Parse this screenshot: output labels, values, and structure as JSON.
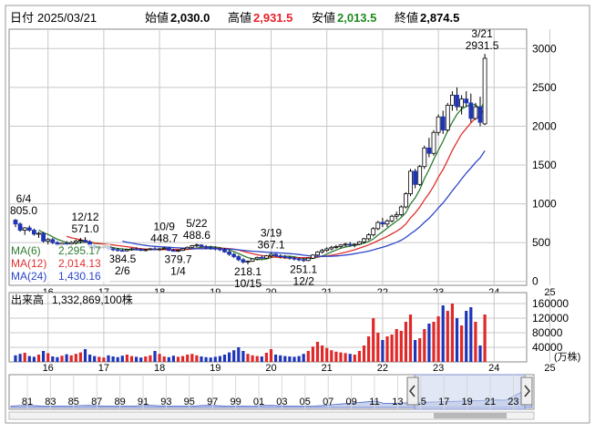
{
  "header": {
    "date_label": "日付",
    "date_value": "2025/03/21",
    "open_label": "始値",
    "open_value": "2,030.0",
    "high_label": "高値",
    "high_value": "2,931.5",
    "low_label": "安値",
    "low_value": "2,013.5",
    "close_label": "終値",
    "close_value": "2,874.5"
  },
  "colors": {
    "up": "#000000",
    "down": "#1f35b8",
    "high_text": "#e8202a",
    "low_text": "#1e8a1e",
    "ma6": "#2e7d32",
    "ma12": "#e23030",
    "ma24": "#2c46c8",
    "vol_up": "#e02828",
    "vol_down": "#1f35b8",
    "grid": "#c8c8c8",
    "navigator_fill": "#c9d3ec"
  },
  "legend": {
    "ma6_label": "MA(6)",
    "ma6_value": "2,295.17",
    "ma12_label": "MA(12)",
    "ma12_value": "2,014.13",
    "ma24_label": "MA(24)",
    "ma24_value": "1,430.16"
  },
  "volume": {
    "label": "出来高",
    "value": "1,332,869,100株",
    "unit": "(万株)",
    "ticks": [
      "160000",
      "120000",
      "80000",
      "40000"
    ]
  },
  "annotations": [
    {
      "date": "6/4",
      "value": "805.0"
    },
    {
      "date": "12/12",
      "value": "571.0"
    },
    {
      "date": "2/6",
      "value": "384.5"
    },
    {
      "date": "10/9",
      "value": "448.7"
    },
    {
      "date": "1/4",
      "value": "379.7"
    },
    {
      "date": "5/22",
      "value": "488.6"
    },
    {
      "date": "10/15",
      "value": "218.1"
    },
    {
      "date": "3/19",
      "value": "367.1"
    },
    {
      "date": "12/2",
      "value": "251.1"
    },
    {
      "date": "3/21",
      "value": "2931.5"
    }
  ],
  "navigator": {
    "labels": [
      "81",
      "83",
      "85",
      "87",
      "89",
      "91",
      "93",
      "95",
      "97",
      "99",
      "01",
      "03",
      "05",
      "07",
      "09",
      "11",
      "13",
      "15",
      "17",
      "19",
      "21",
      "23"
    ],
    "left_handle_icon": "chevron-left-icon",
    "right_handle_icon": "chevron-right-icon"
  },
  "chart_data": {
    "type": "candlestick",
    "period": "monthly",
    "x_tick_labels": [
      "16",
      "17",
      "18",
      "19",
      "20",
      "21",
      "22",
      "23",
      "24",
      "25"
    ],
    "y_tick_labels": [
      "3000",
      "2500",
      "2000",
      "1500",
      "1000",
      "500",
      "0"
    ],
    "ylim": [
      -50,
      3250
    ],
    "grid": true,
    "series_ma": [
      {
        "name": "MA(6)",
        "last": 2295.17
      },
      {
        "name": "MA(12)",
        "last": 2014.13
      },
      {
        "name": "MA(24)",
        "last": 1430.16
      }
    ],
    "start_month": "2015-06",
    "ohlc": [
      [
        790,
        805,
        700,
        740
      ],
      [
        740,
        760,
        640,
        660
      ],
      [
        660,
        700,
        600,
        690
      ],
      [
        690,
        720,
        640,
        660
      ],
      [
        660,
        680,
        590,
        610
      ],
      [
        610,
        640,
        560,
        620
      ],
      [
        620,
        640,
        500,
        520
      ],
      [
        520,
        560,
        470,
        540
      ],
      [
        540,
        560,
        480,
        500
      ],
      [
        500,
        520,
        450,
        470
      ],
      [
        470,
        500,
        430,
        490
      ],
      [
        490,
        520,
        460,
        480
      ],
      [
        480,
        520,
        440,
        500
      ],
      [
        500,
        540,
        470,
        520
      ],
      [
        520,
        560,
        490,
        530
      ],
      [
        530,
        571,
        500,
        510
      ],
      [
        510,
        530,
        440,
        460
      ],
      [
        460,
        480,
        400,
        430
      ],
      [
        430,
        460,
        400,
        440
      ],
      [
        440,
        470,
        410,
        450
      ],
      [
        450,
        470,
        400,
        420
      ],
      [
        420,
        440,
        390,
        410
      ],
      [
        410,
        430,
        385,
        400
      ],
      [
        400,
        420,
        384.5,
        395
      ],
      [
        395,
        420,
        385,
        410
      ],
      [
        410,
        430,
        395,
        420
      ],
      [
        420,
        440,
        400,
        415
      ],
      [
        415,
        430,
        390,
        400
      ],
      [
        400,
        420,
        385,
        410
      ],
      [
        410,
        430,
        400,
        420
      ],
      [
        420,
        440,
        400,
        410
      ],
      [
        410,
        430,
        395,
        420
      ],
      [
        420,
        448.7,
        410,
        430
      ],
      [
        430,
        440,
        390,
        400
      ],
      [
        400,
        420,
        385,
        395
      ],
      [
        395,
        410,
        379.7,
        400
      ],
      [
        400,
        430,
        390,
        420
      ],
      [
        420,
        450,
        410,
        440
      ],
      [
        440,
        470,
        430,
        460
      ],
      [
        460,
        488.6,
        440,
        470
      ],
      [
        470,
        480,
        440,
        450
      ],
      [
        450,
        470,
        420,
        440
      ],
      [
        440,
        460,
        410,
        430
      ],
      [
        430,
        450,
        400,
        420
      ],
      [
        420,
        440,
        390,
        410
      ],
      [
        410,
        430,
        370,
        380
      ],
      [
        380,
        400,
        330,
        350
      ],
      [
        350,
        370,
        300,
        320
      ],
      [
        320,
        340,
        260,
        280
      ],
      [
        280,
        300,
        230,
        250
      ],
      [
        250,
        270,
        218.1,
        260
      ],
      [
        260,
        300,
        250,
        290
      ],
      [
        290,
        320,
        270,
        310
      ],
      [
        310,
        330,
        290,
        300
      ],
      [
        300,
        340,
        290,
        330
      ],
      [
        330,
        367.1,
        310,
        350
      ],
      [
        350,
        360,
        320,
        330
      ],
      [
        330,
        350,
        300,
        320
      ],
      [
        320,
        340,
        290,
        310
      ],
      [
        310,
        330,
        280,
        300
      ],
      [
        300,
        320,
        270,
        290
      ],
      [
        290,
        310,
        260,
        280
      ],
      [
        280,
        300,
        251.1,
        270
      ],
      [
        270,
        310,
        260,
        300
      ],
      [
        300,
        350,
        290,
        340
      ],
      [
        340,
        390,
        330,
        380
      ],
      [
        380,
        420,
        360,
        400
      ],
      [
        400,
        440,
        380,
        420
      ],
      [
        420,
        460,
        400,
        440
      ],
      [
        440,
        470,
        420,
        450
      ],
      [
        450,
        480,
        430,
        470
      ],
      [
        470,
        500,
        450,
        480
      ],
      [
        480,
        510,
        450,
        470
      ],
      [
        470,
        490,
        440,
        480
      ],
      [
        480,
        520,
        470,
        510
      ],
      [
        510,
        560,
        490,
        550
      ],
      [
        550,
        620,
        530,
        600
      ],
      [
        600,
        700,
        580,
        680
      ],
      [
        680,
        780,
        660,
        760
      ],
      [
        760,
        820,
        700,
        740
      ],
      [
        740,
        800,
        700,
        780
      ],
      [
        780,
        860,
        760,
        840
      ],
      [
        840,
        900,
        800,
        860
      ],
      [
        860,
        980,
        840,
        960
      ],
      [
        960,
        1150,
        940,
        1130
      ],
      [
        1130,
        1450,
        1100,
        1420
      ],
      [
        1420,
        1450,
        1200,
        1250
      ],
      [
        1250,
        1500,
        1230,
        1480
      ],
      [
        1480,
        1750,
        1450,
        1720
      ],
      [
        1720,
        1850,
        1600,
        1650
      ],
      [
        1650,
        1950,
        1620,
        1920
      ],
      [
        1920,
        2150,
        1880,
        2120
      ],
      [
        2120,
        2200,
        1900,
        1950
      ],
      [
        1950,
        2300,
        1930,
        2270
      ],
      [
        2270,
        2450,
        2200,
        2400
      ],
      [
        2400,
        2500,
        2200,
        2250
      ],
      [
        2250,
        2400,
        2150,
        2350
      ],
      [
        2350,
        2450,
        2250,
        2300
      ],
      [
        2300,
        2420,
        2050,
        2100
      ],
      [
        2100,
        2300,
        2080,
        2250
      ],
      [
        2250,
        2380,
        2000,
        2050
      ],
      [
        2030,
        2931.5,
        2013.5,
        2874.5
      ]
    ],
    "volume": [
      18000,
      22000,
      25000,
      16000,
      14000,
      20000,
      30000,
      24000,
      15000,
      13000,
      17000,
      21000,
      18000,
      22000,
      26000,
      35000,
      20000,
      16000,
      14000,
      12000,
      18000,
      15000,
      13000,
      17000,
      20000,
      16000,
      14000,
      12000,
      15000,
      18000,
      30000,
      22000,
      15000,
      13000,
      17000,
      14000,
      16000,
      20000,
      22000,
      18000,
      15000,
      13000,
      12000,
      14000,
      16000,
      20000,
      26000,
      32000,
      40000,
      30000,
      22000,
      18000,
      16000,
      15000,
      25000,
      35000,
      20000,
      18000,
      16000,
      15000,
      14000,
      16000,
      22000,
      30000,
      42000,
      55000,
      45000,
      38000,
      32000,
      28000,
      26000,
      24000,
      22000,
      20000,
      30000,
      45000,
      70000,
      120000,
      80000,
      60000,
      70000,
      75000,
      90000,
      85000,
      110000,
      130000,
      60000,
      65000,
      90000,
      105000,
      110000,
      125000,
      155000,
      140000,
      160000,
      120000,
      100000,
      140000,
      150000,
      110000,
      45000,
      130000
    ],
    "volume_ylim": [
      0,
      190000
    ]
  }
}
